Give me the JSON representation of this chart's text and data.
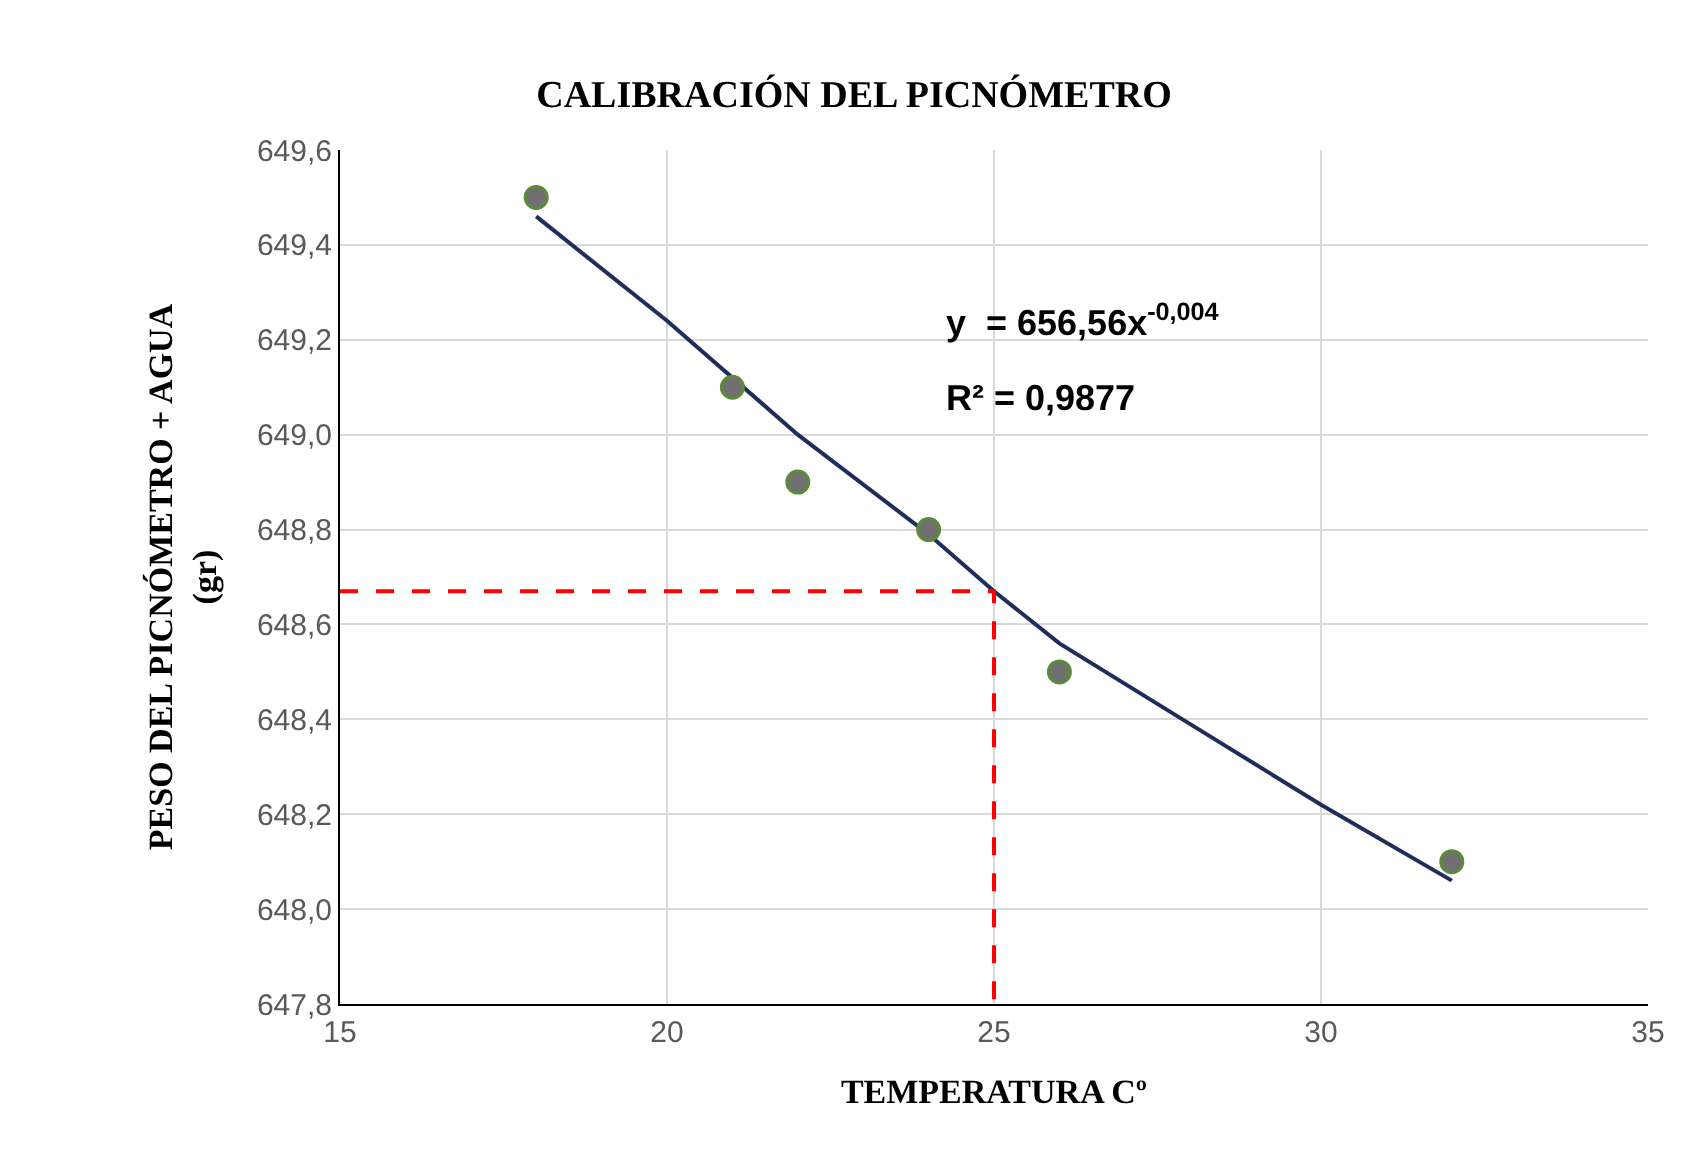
{
  "chart_data": {
    "type": "scatter",
    "title": "CALIBRACIÓN DEL PICNÓMETRO",
    "xlabel": "TEMPERATURA Cº",
    "ylabel": "PESO DEL PICNÓMETRO + AGUA (gr)",
    "series": [
      {
        "type": "line",
        "color": "#1f2d5a",
        "x": [
          18,
          20,
          22,
          24,
          25,
          26,
          28,
          30,
          32
        ],
        "values": [
          649.46,
          649.24,
          649.0,
          648.79,
          648.67,
          648.56,
          648.39,
          648.22,
          648.06
        ],
        "marker": "none",
        "line_style": "solid"
      },
      {
        "type": "line",
        "color": "#ff0000",
        "x": [
          15,
          25,
          25
        ],
        "values": [
          648.67,
          648.67,
          647.8
        ],
        "marker": "none",
        "line_style": "dashed"
      },
      {
        "color": "#707070",
        "x": [
          18,
          21,
          22,
          24,
          26,
          32
        ],
        "values": [
          649.5,
          649.1,
          648.9,
          648.8,
          648.5,
          648.1
        ],
        "marker": "circle"
      }
    ],
    "annotations": [
      "y  = 656,56x$^{-0,004}$",
      "R² = 0,9877"
    ],
    "xlim": [
      15,
      35
    ],
    "xticks": [
      15,
      20,
      25,
      30,
      35
    ],
    "ylim": [
      647.8,
      649.6
    ],
    "yticks": [
      {
        "value": 647.8,
        "label": "647,8"
      },
      {
        "value": 648.0,
        "label": "648,0"
      },
      {
        "value": 648.2,
        "label": "648,2"
      },
      {
        "value": 648.4,
        "label": "648,4"
      },
      {
        "value": 648.6,
        "label": "648,6"
      },
      {
        "value": 648.8,
        "label": "648,8"
      },
      {
        "value": 649.0,
        "label": "649,0"
      },
      {
        "value": 649.2,
        "label": "649,2"
      },
      {
        "value": 649.4,
        "label": "649,4"
      },
      {
        "value": 649.6,
        "label": "649,6"
      }
    ],
    "grid": true
  }
}
